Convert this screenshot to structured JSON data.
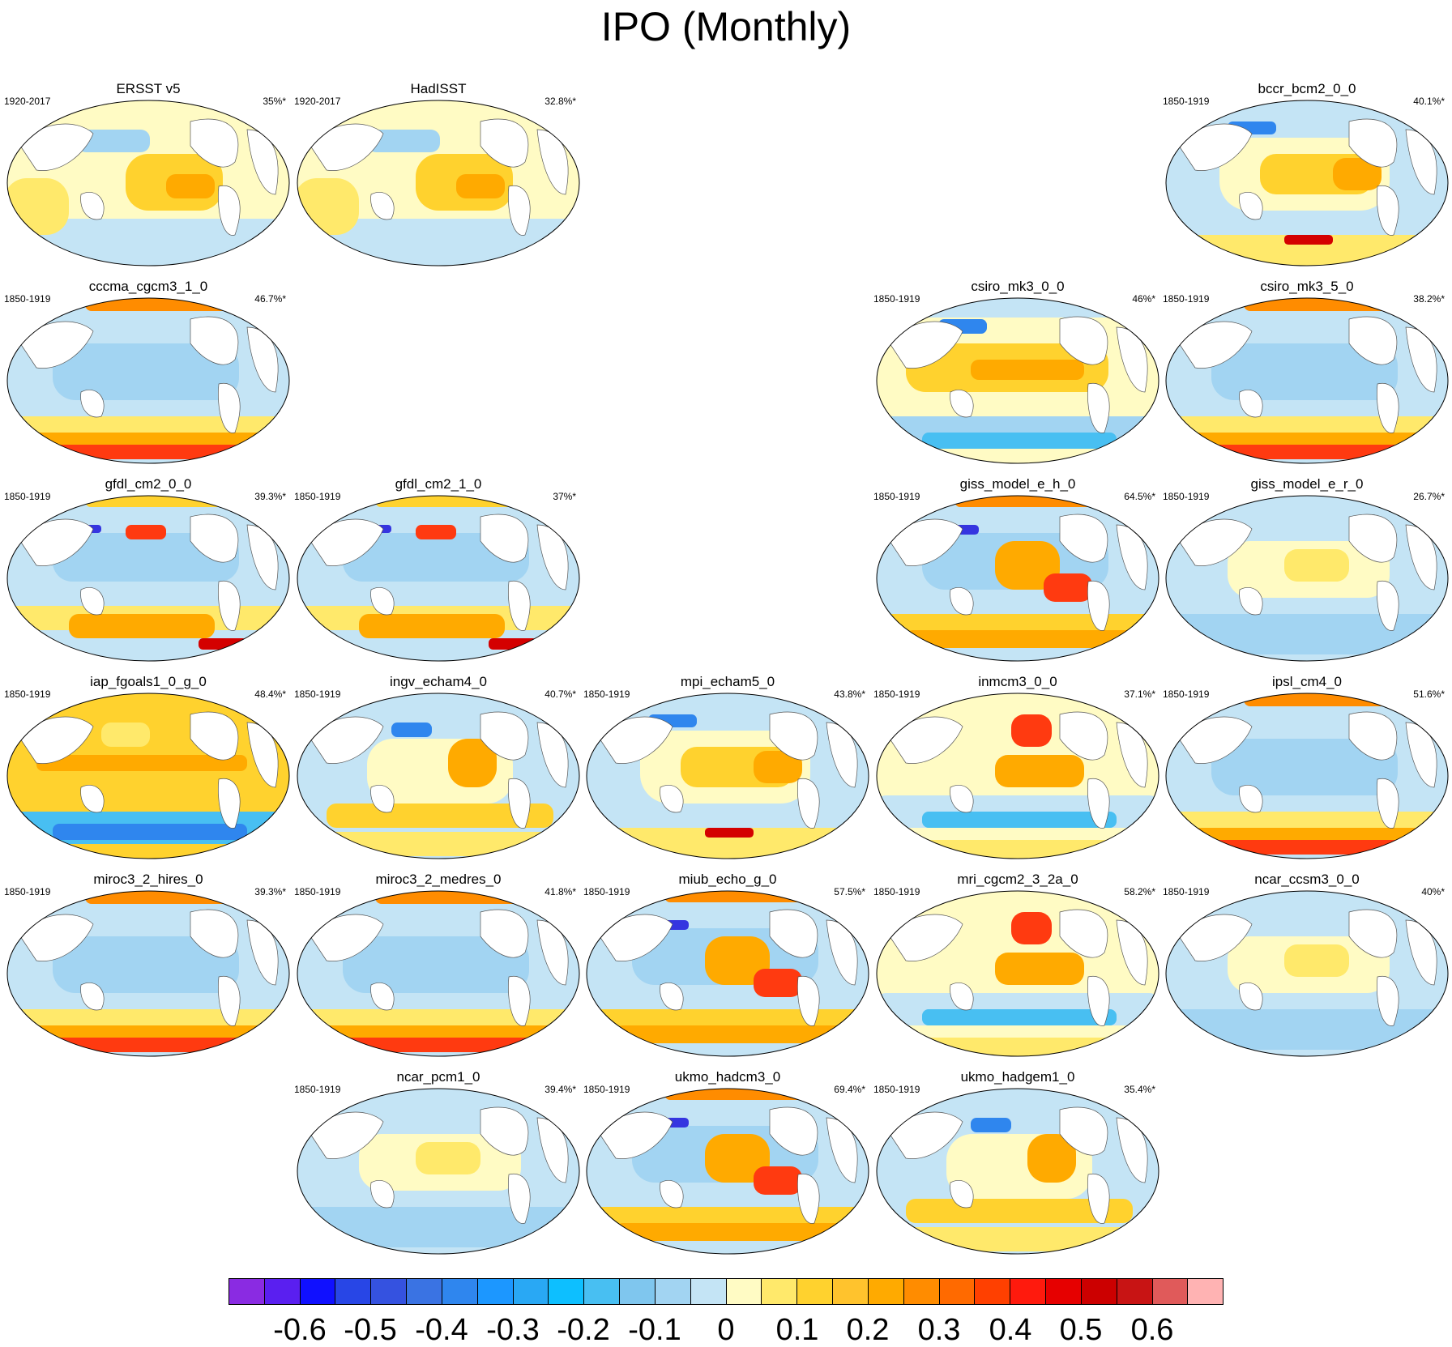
{
  "figure": {
    "title": "IPO (Monthly)"
  },
  "panels": [
    {
      "id": "p1",
      "title": "ERSST v5",
      "period": "1920-2017",
      "pct": "35%*"
    },
    {
      "id": "p2",
      "title": "HadISST",
      "period": "1920-2017",
      "pct": "32.8%*"
    },
    {
      "id": "p3",
      "title": "bccr_bcm2_0_0",
      "period": "1850-1919",
      "pct": "40.1%*"
    },
    {
      "id": "p4",
      "title": "cccma_cgcm3_1_0",
      "period": "1850-1919",
      "pct": "46.7%*"
    },
    {
      "id": "p5",
      "title": "csiro_mk3_0_0",
      "period": "1850-1919",
      "pct": "46%*"
    },
    {
      "id": "p6",
      "title": "csiro_mk3_5_0",
      "period": "1850-1919",
      "pct": "38.2%*"
    },
    {
      "id": "p7",
      "title": "gfdl_cm2_0_0",
      "period": "1850-1919",
      "pct": "39.3%*"
    },
    {
      "id": "p8",
      "title": "gfdl_cm2_1_0",
      "period": "1850-1919",
      "pct": "37%*"
    },
    {
      "id": "p9",
      "title": "giss_model_e_h_0",
      "period": "1850-1919",
      "pct": "64.5%*"
    },
    {
      "id": "p10",
      "title": "giss_model_e_r_0",
      "period": "1850-1919",
      "pct": "26.7%*"
    },
    {
      "id": "p11",
      "title": "iap_fgoals1_0_g_0",
      "period": "1850-1919",
      "pct": "48.4%*"
    },
    {
      "id": "p12",
      "title": "ingv_echam4_0",
      "period": "1850-1919",
      "pct": "40.7%*"
    },
    {
      "id": "p13",
      "title": "mpi_echam5_0",
      "period": "1850-1919",
      "pct": "43.8%*"
    },
    {
      "id": "p14",
      "title": "inmcm3_0_0",
      "period": "1850-1919",
      "pct": "37.1%*"
    },
    {
      "id": "p15",
      "title": "ipsl_cm4_0",
      "period": "1850-1919",
      "pct": "51.6%*"
    },
    {
      "id": "p16",
      "title": "miroc3_2_hires_0",
      "period": "1850-1919",
      "pct": "39.3%*"
    },
    {
      "id": "p17",
      "title": "miroc3_2_medres_0",
      "period": "1850-1919",
      "pct": "41.8%*"
    },
    {
      "id": "p18",
      "title": "miub_echo_g_0",
      "period": "1850-1919",
      "pct": "57.5%*"
    },
    {
      "id": "p19",
      "title": "mri_cgcm2_3_2a_0",
      "period": "1850-1919",
      "pct": "58.2%*"
    },
    {
      "id": "p20",
      "title": "ncar_ccsm3_0_0",
      "period": "1850-1919",
      "pct": "40%*"
    },
    {
      "id": "p21",
      "title": "ncar_pcm1_0",
      "period": "1850-1919",
      "pct": "39.4%*"
    },
    {
      "id": "p22",
      "title": "ukmo_hadcm3_0",
      "period": "1850-1919",
      "pct": "69.4%*"
    },
    {
      "id": "p23",
      "title": "ukmo_hadgem1_0",
      "period": "1850-1919",
      "pct": "35.4%*"
    }
  ],
  "colorbar": {
    "labels": [
      "-0.6",
      "-0.5",
      "-0.4",
      "-0.3",
      "-0.2",
      "-0.1",
      "0",
      "0.1",
      "0.2",
      "0.3",
      "0.4",
      "0.5",
      "0.6"
    ],
    "colors": [
      "#8a2be2",
      "#5a1ff0",
      "#1010ff",
      "#2846e6",
      "#3552e0",
      "#3a73e3",
      "#2f86ee",
      "#1c97ff",
      "#29a8f4",
      "#0dbfff",
      "#48bff2",
      "#7fc6ee",
      "#a2d4f2",
      "#c4e4f5",
      "#fffbc4",
      "#ffe96b",
      "#ffd22e",
      "#ffc32d",
      "#ffaa00",
      "#ff8c00",
      "#ff6a00",
      "#ff4000",
      "#ff1a0d",
      "#e60000",
      "#cc0000",
      "#c81414",
      "#e05a5a",
      "#ffb3b3"
    ]
  }
}
